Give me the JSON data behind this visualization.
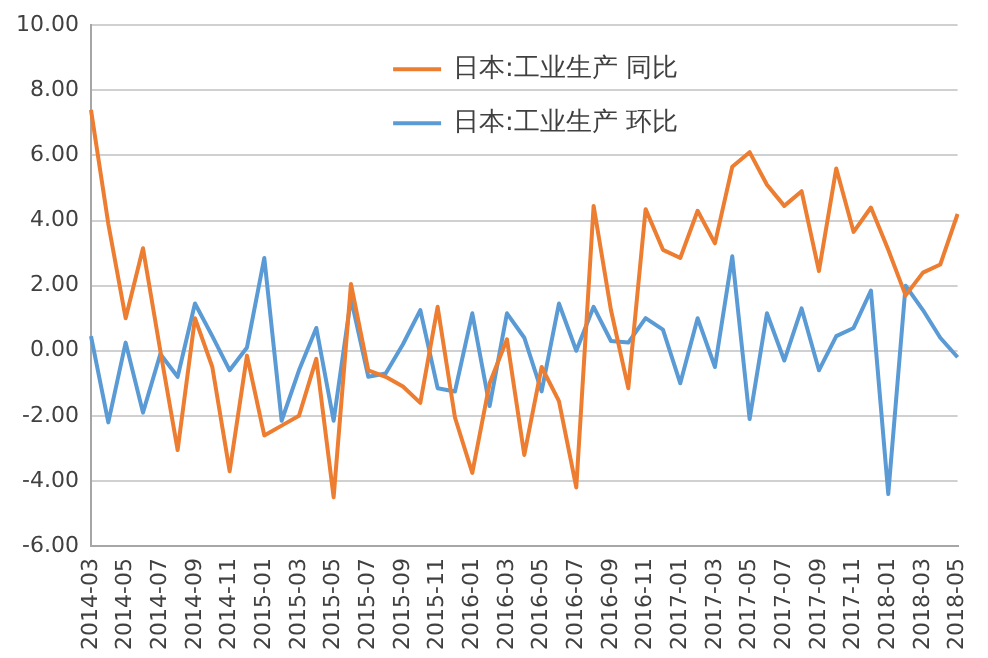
{
  "chart_data": {
    "type": "line",
    "categories": [
      "2014-03",
      null,
      "2014-05",
      null,
      "2014-07",
      null,
      "2014-09",
      null,
      "2014-11",
      null,
      "2015-01",
      null,
      "2015-03",
      null,
      "2015-05",
      null,
      "2015-07",
      null,
      "2015-09",
      null,
      "2015-11",
      null,
      "2016-01",
      null,
      "2016-03",
      null,
      "2016-05",
      null,
      "2016-07",
      null,
      "2016-09",
      null,
      "2016-11",
      null,
      "2017-01",
      null,
      "2017-03",
      null,
      "2017-05",
      null,
      "2017-07",
      null,
      "2017-09",
      null,
      "2017-11",
      null,
      "2018-01",
      null,
      "2018-03",
      null,
      "2018-05"
    ],
    "series": [
      {
        "name": "日本:工业生产 同比",
        "color": "#ed7d31",
        "values": [
          7.4,
          3.9,
          1.0,
          3.15,
          0.0,
          -3.05,
          1.0,
          -0.5,
          -3.7,
          -0.15,
          -2.6,
          -2.3,
          -2.0,
          -0.25,
          -4.5,
          2.05,
          -0.6,
          -0.8,
          -1.1,
          -1.6,
          1.35,
          -2.05,
          -3.75,
          -1.0,
          0.35,
          -3.2,
          -0.5,
          -1.55,
          -4.2,
          4.45,
          1.25,
          -1.15,
          4.35,
          3.1,
          2.85,
          4.3,
          3.3,
          5.65,
          6.1,
          5.1,
          4.45,
          4.9,
          2.45,
          5.6,
          3.65,
          4.4,
          3.1,
          1.7,
          2.4,
          2.65,
          4.2
        ]
      },
      {
        "name": "日本:工业生产 环比",
        "color": "#5b9bd5",
        "values": [
          0.45,
          -2.2,
          0.25,
          -1.9,
          -0.1,
          -0.8,
          1.45,
          0.45,
          -0.6,
          0.1,
          2.85,
          -2.15,
          -0.6,
          0.7,
          -2.15,
          1.6,
          -0.8,
          -0.7,
          0.2,
          1.25,
          -1.15,
          -1.25,
          1.15,
          -1.7,
          1.15,
          0.4,
          -1.25,
          1.45,
          0.0,
          1.35,
          0.3,
          0.25,
          1.0,
          0.65,
          -1.0,
          1.0,
          -0.5,
          2.9,
          -2.1,
          1.15,
          -0.3,
          1.3,
          -0.6,
          0.45,
          0.7,
          1.85,
          -4.4,
          2.0,
          1.25,
          0.4,
          -0.2
        ]
      }
    ],
    "ylim": [
      -6,
      10
    ],
    "yticks": [
      {
        "value": -6,
        "label": "-6.00"
      },
      {
        "value": -4,
        "label": "-4.00"
      },
      {
        "value": -2,
        "label": "-2.00"
      },
      {
        "value": 0,
        "label": "0.00"
      },
      {
        "value": 2,
        "label": "2.00"
      },
      {
        "value": 4,
        "label": "4.00"
      },
      {
        "value": 6,
        "label": "6.00"
      },
      {
        "value": 8,
        "label": "8.00"
      },
      {
        "value": 10,
        "label": "10.00"
      }
    ],
    "grid": "y",
    "legend": "top",
    "marker": "none",
    "line_style": "solid"
  }
}
